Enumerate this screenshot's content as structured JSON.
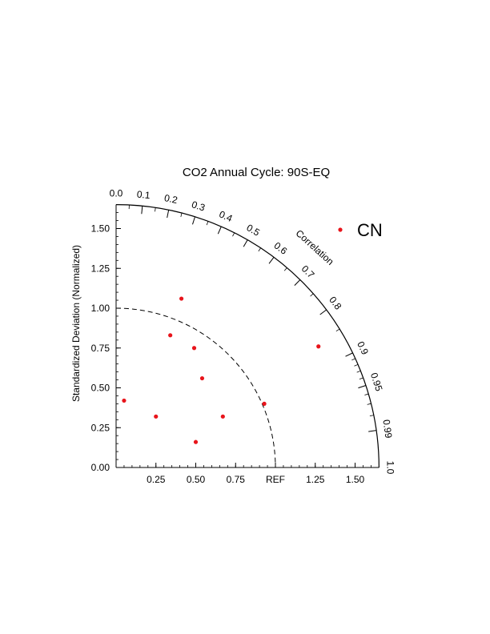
{
  "chart_data": {
    "type": "taylor-diagram",
    "title": "CO2 Annual Cycle:  90S-EQ",
    "ylabel": "Standardized Deviation (Normalized)",
    "arc_label": "Correlation",
    "ref_label": "REF",
    "std_range": [
      0,
      1.65
    ],
    "y_ticks": [
      "0.00",
      "0.25",
      "0.50",
      "0.75",
      "1.00",
      "1.25",
      "1.50"
    ],
    "x_ticks": [
      "0.25",
      "0.50",
      "0.75",
      "REF",
      "1.25",
      "1.50"
    ],
    "correlation_ticks": [
      "0.0",
      "0.1",
      "0.2",
      "0.3",
      "0.4",
      "0.5",
      "0.6",
      "0.7",
      "0.8",
      "0.9",
      "0.95",
      "0.99",
      "1.0"
    ],
    "ref_arc_dashed": true,
    "legend": {
      "position": "top-right",
      "entries": [
        {
          "name": "CN",
          "color": "#e8141b"
        }
      ]
    },
    "series": [
      {
        "name": "CN",
        "color": "#e8141b",
        "points": [
          {
            "x": 0.05,
            "y": 0.42
          },
          {
            "x": 0.25,
            "y": 0.32
          },
          {
            "x": 0.34,
            "y": 0.83
          },
          {
            "x": 0.41,
            "y": 1.06
          },
          {
            "x": 0.49,
            "y": 0.75
          },
          {
            "x": 0.54,
            "y": 0.56
          },
          {
            "x": 0.5,
            "y": 0.16
          },
          {
            "x": 0.67,
            "y": 0.32
          },
          {
            "x": 0.93,
            "y": 0.4
          },
          {
            "x": 1.27,
            "y": 0.76
          }
        ]
      }
    ]
  }
}
